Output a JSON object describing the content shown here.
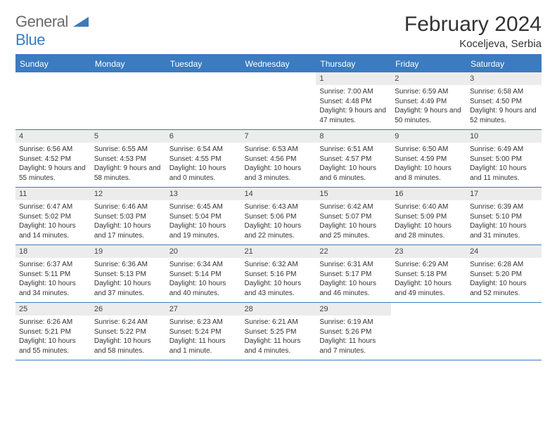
{
  "brand": {
    "part1": "General",
    "part2": "Blue"
  },
  "title": "February 2024",
  "location": "Koceljeva, Serbia",
  "colors": {
    "accent": "#3b7bbf",
    "header_text": "#ffffff",
    "daynum_bg": "#ececec",
    "text": "#333333",
    "logo_gray": "#6a6a6a",
    "background": "#ffffff"
  },
  "typography": {
    "title_fontsize": 30,
    "location_fontsize": 15,
    "dayheader_fontsize": 12,
    "daynum_fontsize": 11,
    "body_fontsize": 10,
    "font_family": "Arial"
  },
  "day_names": [
    "Sunday",
    "Monday",
    "Tuesday",
    "Wednesday",
    "Thursday",
    "Friday",
    "Saturday"
  ],
  "weeks": [
    [
      {
        "n": "",
        "sr": "",
        "ss": "",
        "dl": ""
      },
      {
        "n": "",
        "sr": "",
        "ss": "",
        "dl": ""
      },
      {
        "n": "",
        "sr": "",
        "ss": "",
        "dl": ""
      },
      {
        "n": "",
        "sr": "",
        "ss": "",
        "dl": ""
      },
      {
        "n": "1",
        "sr": "Sunrise: 7:00 AM",
        "ss": "Sunset: 4:48 PM",
        "dl": "Daylight: 9 hours and 47 minutes."
      },
      {
        "n": "2",
        "sr": "Sunrise: 6:59 AM",
        "ss": "Sunset: 4:49 PM",
        "dl": "Daylight: 9 hours and 50 minutes."
      },
      {
        "n": "3",
        "sr": "Sunrise: 6:58 AM",
        "ss": "Sunset: 4:50 PM",
        "dl": "Daylight: 9 hours and 52 minutes."
      }
    ],
    [
      {
        "n": "4",
        "sr": "Sunrise: 6:56 AM",
        "ss": "Sunset: 4:52 PM",
        "dl": "Daylight: 9 hours and 55 minutes."
      },
      {
        "n": "5",
        "sr": "Sunrise: 6:55 AM",
        "ss": "Sunset: 4:53 PM",
        "dl": "Daylight: 9 hours and 58 minutes."
      },
      {
        "n": "6",
        "sr": "Sunrise: 6:54 AM",
        "ss": "Sunset: 4:55 PM",
        "dl": "Daylight: 10 hours and 0 minutes."
      },
      {
        "n": "7",
        "sr": "Sunrise: 6:53 AM",
        "ss": "Sunset: 4:56 PM",
        "dl": "Daylight: 10 hours and 3 minutes."
      },
      {
        "n": "8",
        "sr": "Sunrise: 6:51 AM",
        "ss": "Sunset: 4:57 PM",
        "dl": "Daylight: 10 hours and 6 minutes."
      },
      {
        "n": "9",
        "sr": "Sunrise: 6:50 AM",
        "ss": "Sunset: 4:59 PM",
        "dl": "Daylight: 10 hours and 8 minutes."
      },
      {
        "n": "10",
        "sr": "Sunrise: 6:49 AM",
        "ss": "Sunset: 5:00 PM",
        "dl": "Daylight: 10 hours and 11 minutes."
      }
    ],
    [
      {
        "n": "11",
        "sr": "Sunrise: 6:47 AM",
        "ss": "Sunset: 5:02 PM",
        "dl": "Daylight: 10 hours and 14 minutes."
      },
      {
        "n": "12",
        "sr": "Sunrise: 6:46 AM",
        "ss": "Sunset: 5:03 PM",
        "dl": "Daylight: 10 hours and 17 minutes."
      },
      {
        "n": "13",
        "sr": "Sunrise: 6:45 AM",
        "ss": "Sunset: 5:04 PM",
        "dl": "Daylight: 10 hours and 19 minutes."
      },
      {
        "n": "14",
        "sr": "Sunrise: 6:43 AM",
        "ss": "Sunset: 5:06 PM",
        "dl": "Daylight: 10 hours and 22 minutes."
      },
      {
        "n": "15",
        "sr": "Sunrise: 6:42 AM",
        "ss": "Sunset: 5:07 PM",
        "dl": "Daylight: 10 hours and 25 minutes."
      },
      {
        "n": "16",
        "sr": "Sunrise: 6:40 AM",
        "ss": "Sunset: 5:09 PM",
        "dl": "Daylight: 10 hours and 28 minutes."
      },
      {
        "n": "17",
        "sr": "Sunrise: 6:39 AM",
        "ss": "Sunset: 5:10 PM",
        "dl": "Daylight: 10 hours and 31 minutes."
      }
    ],
    [
      {
        "n": "18",
        "sr": "Sunrise: 6:37 AM",
        "ss": "Sunset: 5:11 PM",
        "dl": "Daylight: 10 hours and 34 minutes."
      },
      {
        "n": "19",
        "sr": "Sunrise: 6:36 AM",
        "ss": "Sunset: 5:13 PM",
        "dl": "Daylight: 10 hours and 37 minutes."
      },
      {
        "n": "20",
        "sr": "Sunrise: 6:34 AM",
        "ss": "Sunset: 5:14 PM",
        "dl": "Daylight: 10 hours and 40 minutes."
      },
      {
        "n": "21",
        "sr": "Sunrise: 6:32 AM",
        "ss": "Sunset: 5:16 PM",
        "dl": "Daylight: 10 hours and 43 minutes."
      },
      {
        "n": "22",
        "sr": "Sunrise: 6:31 AM",
        "ss": "Sunset: 5:17 PM",
        "dl": "Daylight: 10 hours and 46 minutes."
      },
      {
        "n": "23",
        "sr": "Sunrise: 6:29 AM",
        "ss": "Sunset: 5:18 PM",
        "dl": "Daylight: 10 hours and 49 minutes."
      },
      {
        "n": "24",
        "sr": "Sunrise: 6:28 AM",
        "ss": "Sunset: 5:20 PM",
        "dl": "Daylight: 10 hours and 52 minutes."
      }
    ],
    [
      {
        "n": "25",
        "sr": "Sunrise: 6:26 AM",
        "ss": "Sunset: 5:21 PM",
        "dl": "Daylight: 10 hours and 55 minutes."
      },
      {
        "n": "26",
        "sr": "Sunrise: 6:24 AM",
        "ss": "Sunset: 5:22 PM",
        "dl": "Daylight: 10 hours and 58 minutes."
      },
      {
        "n": "27",
        "sr": "Sunrise: 6:23 AM",
        "ss": "Sunset: 5:24 PM",
        "dl": "Daylight: 11 hours and 1 minute."
      },
      {
        "n": "28",
        "sr": "Sunrise: 6:21 AM",
        "ss": "Sunset: 5:25 PM",
        "dl": "Daylight: 11 hours and 4 minutes."
      },
      {
        "n": "29",
        "sr": "Sunrise: 6:19 AM",
        "ss": "Sunset: 5:26 PM",
        "dl": "Daylight: 11 hours and 7 minutes."
      },
      {
        "n": "",
        "sr": "",
        "ss": "",
        "dl": ""
      },
      {
        "n": "",
        "sr": "",
        "ss": "",
        "dl": ""
      }
    ]
  ]
}
